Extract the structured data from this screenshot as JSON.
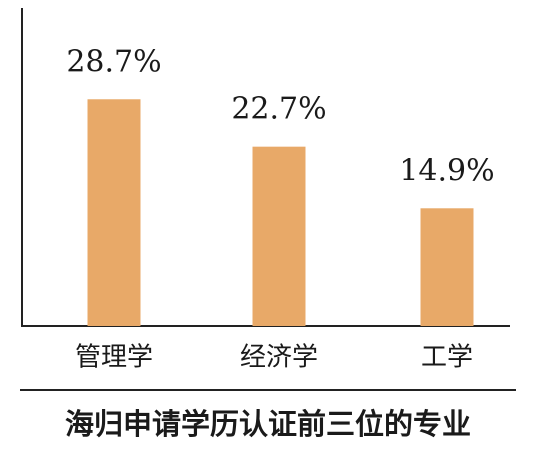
{
  "chart_data": {
    "type": "bar",
    "title": "海归申请学历认证前三位的专业",
    "categories": [
      "管理学",
      "经济学",
      "工学"
    ],
    "values": [
      28.7,
      22.7,
      14.9
    ],
    "value_labels": [
      "28.7%",
      "22.7%",
      "14.9%"
    ],
    "color": "#e8a968"
  }
}
